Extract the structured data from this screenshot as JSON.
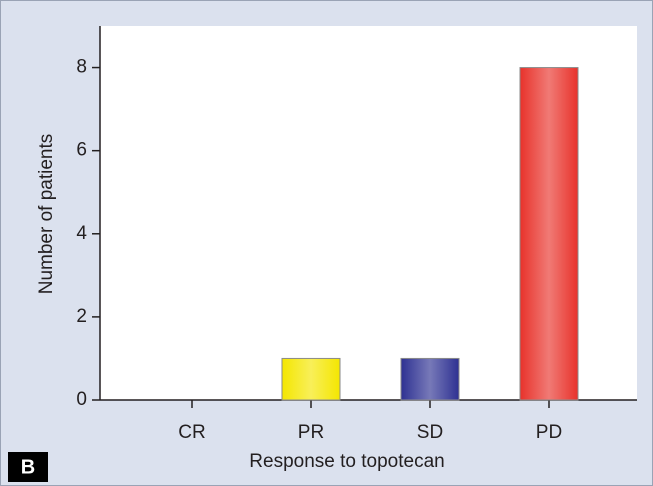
{
  "chart_data": {
    "type": "bar",
    "panel_label": "B",
    "x_label": "Response to topotecan",
    "y_label": "Number of patients",
    "categories": [
      "CR",
      "PR",
      "SD",
      "PD"
    ],
    "values": [
      0,
      1,
      1,
      8
    ],
    "colors": [
      null,
      "#f4e600",
      "#2e3192",
      "#e8322b"
    ],
    "ylim": [
      0,
      9
    ],
    "yticks": [
      0,
      2,
      4,
      6,
      8
    ],
    "grid": false
  }
}
